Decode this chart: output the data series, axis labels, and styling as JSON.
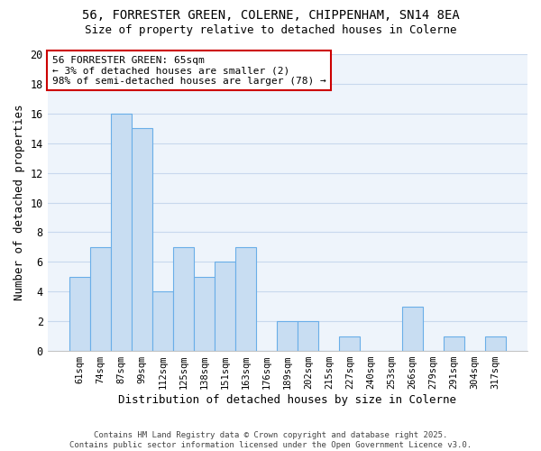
{
  "title_line1": "56, FORRESTER GREEN, COLERNE, CHIPPENHAM, SN14 8EA",
  "title_line2": "Size of property relative to detached houses in Colerne",
  "xlabel": "Distribution of detached houses by size in Colerne",
  "ylabel": "Number of detached properties",
  "categories": [
    "61sqm",
    "74sqm",
    "87sqm",
    "99sqm",
    "112sqm",
    "125sqm",
    "138sqm",
    "151sqm",
    "163sqm",
    "176sqm",
    "189sqm",
    "202sqm",
    "215sqm",
    "227sqm",
    "240sqm",
    "253sqm",
    "266sqm",
    "279sqm",
    "291sqm",
    "304sqm",
    "317sqm"
  ],
  "values": [
    5,
    7,
    16,
    15,
    4,
    7,
    5,
    6,
    7,
    0,
    2,
    2,
    0,
    1,
    0,
    0,
    3,
    0,
    1,
    0,
    1
  ],
  "bar_color": "#c8ddf2",
  "bar_edge_color": "#6aaee8",
  "background_color": "#ffffff",
  "plot_bg_color": "#eef4fb",
  "grid_color": "#c8d8ed",
  "annotation_text": "56 FORRESTER GREEN: 65sqm\n← 3% of detached houses are smaller (2)\n98% of semi-detached houses are larger (78) →",
  "annotation_box_color": "#ffffff",
  "annotation_box_edge": "#cc0000",
  "footer_text": "Contains HM Land Registry data © Crown copyright and database right 2025.\nContains public sector information licensed under the Open Government Licence v3.0.",
  "ylim": [
    0,
    20
  ],
  "yticks": [
    0,
    2,
    4,
    6,
    8,
    10,
    12,
    14,
    16,
    18,
    20
  ]
}
